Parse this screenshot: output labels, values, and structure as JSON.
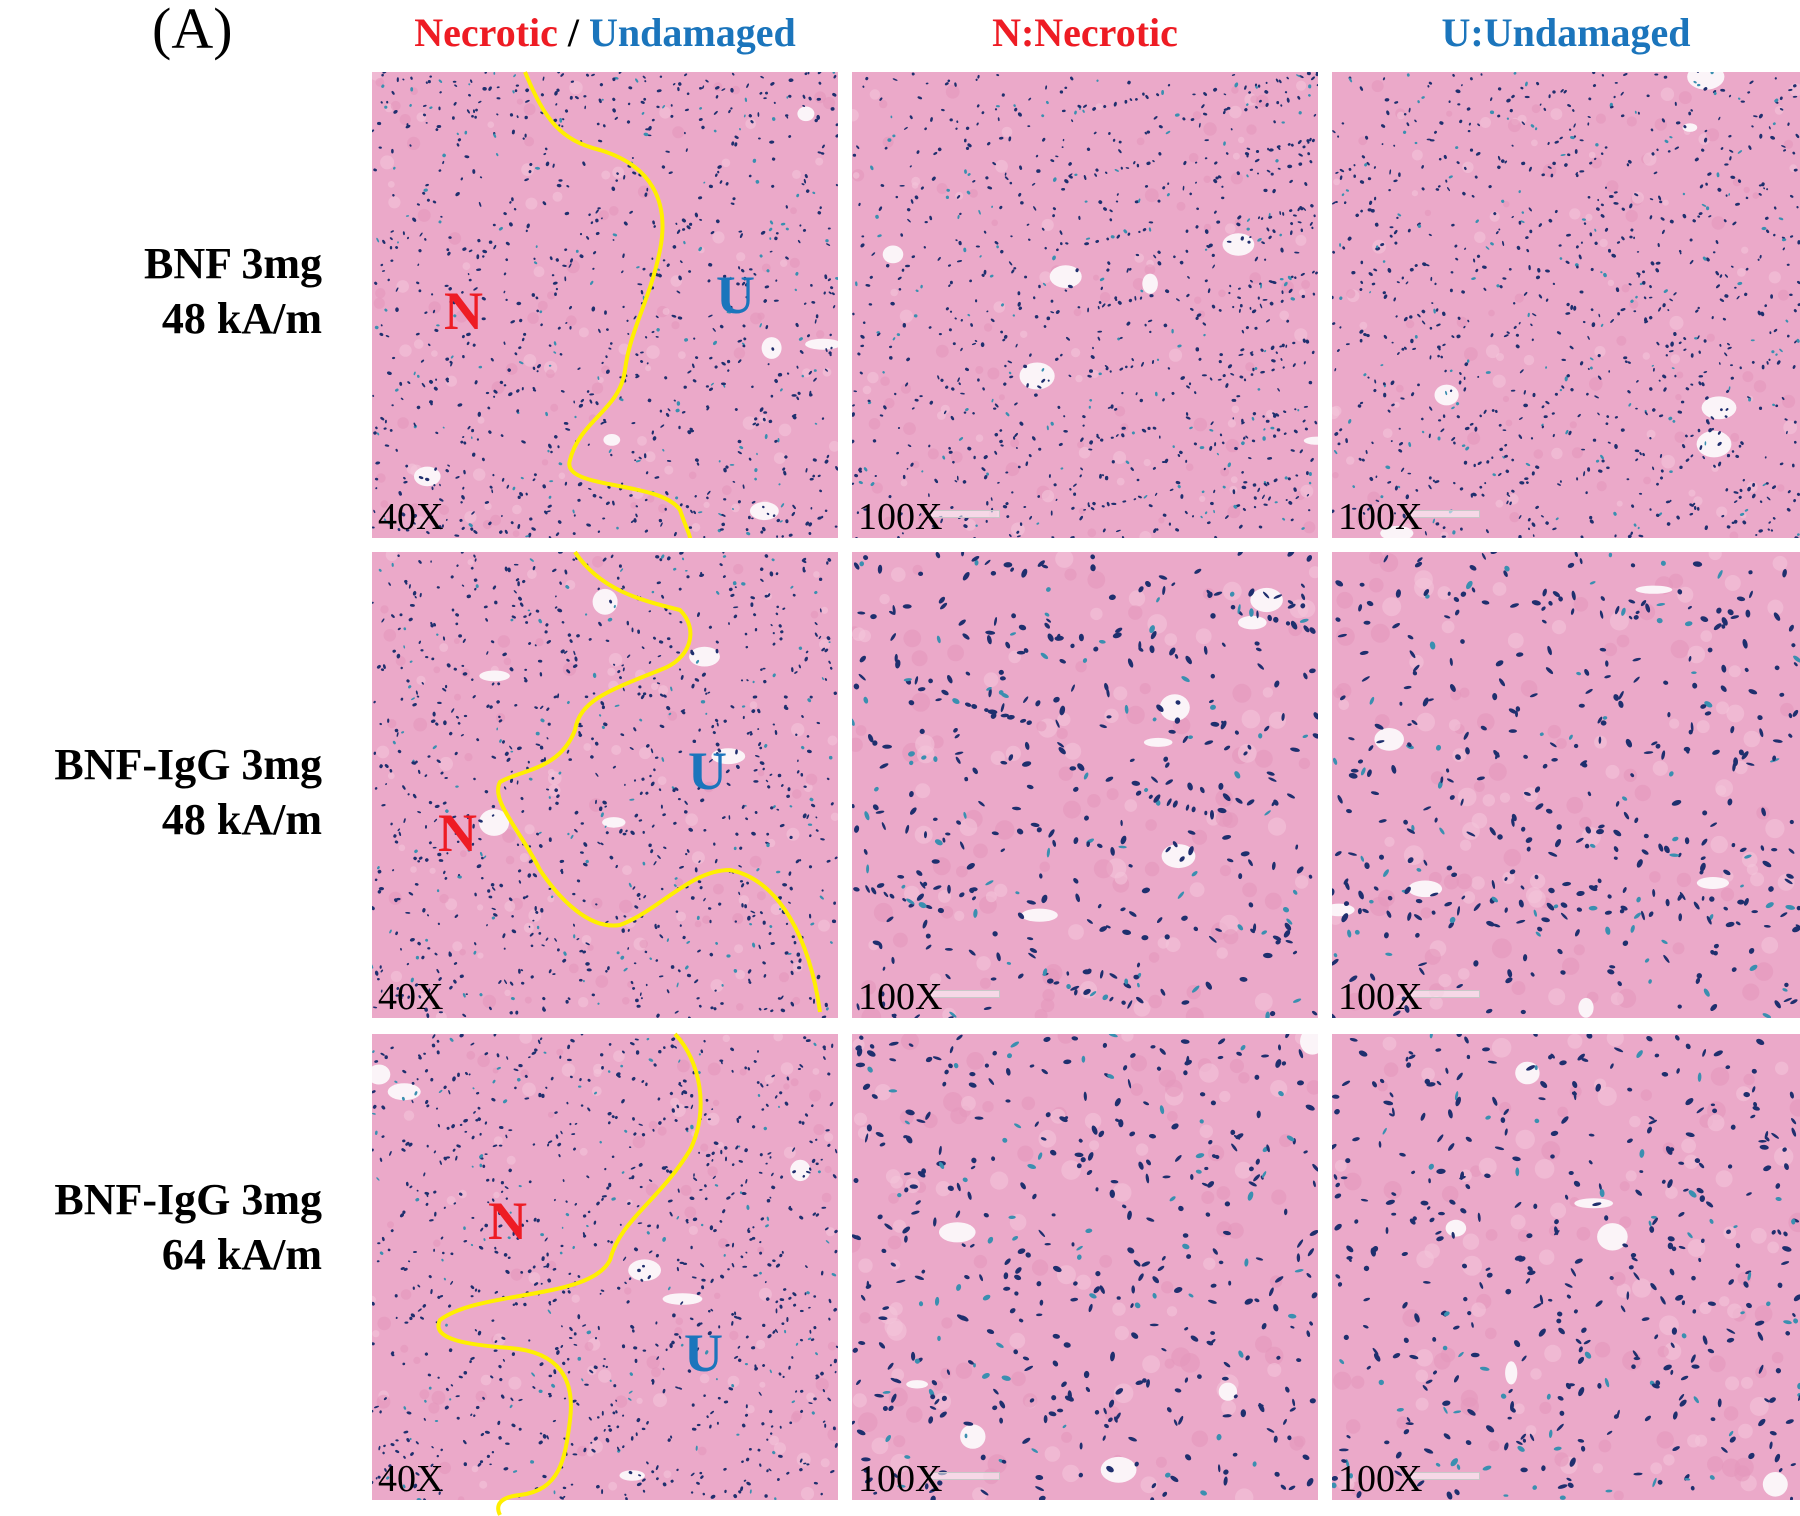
{
  "panel_label": "(A)",
  "colors": {
    "necrotic_red": "#ee1c24",
    "undamaged_blue": "#1b75bc",
    "boundary_yellow": "#ffef00",
    "tissue_pink": "#eba9c9",
    "stain_blue": "#1f2f6e"
  },
  "columns": {
    "col1": {
      "necrotic": "Necrotic",
      "separator": " / ",
      "undamaged": "Undamaged"
    },
    "col2": "N:Necrotic",
    "col3": "U:Undamaged"
  },
  "rows": [
    {
      "label_line1": "BNF 3mg",
      "label_line2": "48 kA/m",
      "tiles": {
        "overview": "40X",
        "necrotic": "100X",
        "undamaged": "100X"
      },
      "region_letters": {
        "n": "N",
        "u": "U"
      }
    },
    {
      "label_line1": "BNF-IgG 3mg",
      "label_line2": "48 kA/m",
      "tiles": {
        "overview": "40X",
        "necrotic": "100X",
        "undamaged": "100X"
      },
      "region_letters": {
        "n": "N",
        "u": "U"
      }
    },
    {
      "label_line1": "BNF-IgG 3mg",
      "label_line2": "64 kA/m",
      "tiles": {
        "overview": "40X",
        "necrotic": "100X",
        "undamaged": "100X"
      },
      "region_letters": {
        "n": "N",
        "u": "U"
      }
    }
  ]
}
